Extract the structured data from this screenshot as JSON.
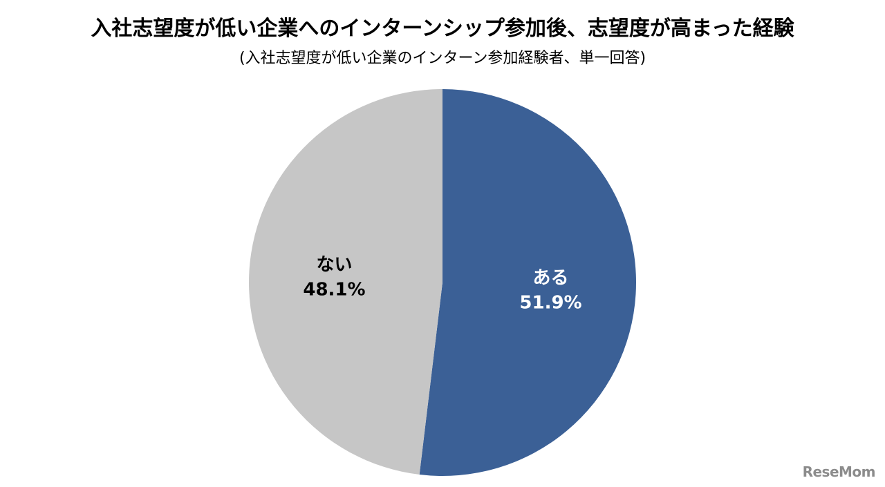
{
  "chart_data": {
    "type": "pie",
    "title": "入社志望度が低い企業へのインターンシップ参加後、志望度が高まった経験",
    "subtitle": "(入社志望度が低い企業のインターン参加経験者、単一回答)",
    "start_angle_deg": 0,
    "direction": "clockwise",
    "slices": [
      {
        "label": "ある",
        "value": 51.9,
        "value_text": "51.9%",
        "color": "#3b6096",
        "label_color": "#ffffff"
      },
      {
        "label": "ない",
        "value": 48.1,
        "value_text": "48.1%",
        "color": "#c6c6c6",
        "label_color": "#000000"
      }
    ],
    "legend": "none"
  },
  "watermark": {
    "text": "ReseMom"
  }
}
